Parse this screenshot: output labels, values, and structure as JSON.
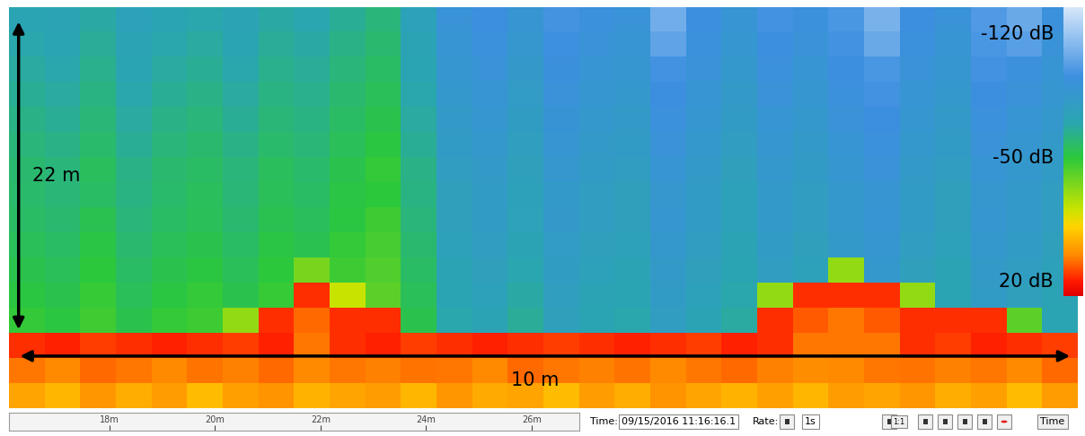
{
  "chart_data": {
    "type": "heatmap",
    "tick_labels": false,
    "annotations": [
      "22 m",
      "10 m"
    ],
    "color_range": [
      -134,
      29
    ],
    "color_ticks": [
      {
        "value": -120,
        "label": "-120 dB"
      },
      {
        "value": -50,
        "label": "-50 dB"
      },
      {
        "value": 20,
        "label": "20 dB"
      }
    ],
    "cells": [
      [
        -70,
        -72,
        -67,
        -74,
        -70,
        -68,
        -72,
        -67,
        -69,
        -64,
        -60,
        -74,
        -90,
        -94,
        -87,
        -97,
        -92,
        -90,
        -108,
        -94,
        -88,
        -96,
        -92,
        -98,
        -110,
        -94,
        -90,
        -100,
        -106,
        -92
      ],
      [
        -68,
        -70,
        -65,
        -72,
        -68,
        -66,
        -70,
        -65,
        -67,
        -62,
        -58,
        -72,
        -88,
        -92,
        -85,
        -95,
        -90,
        -88,
        -104,
        -92,
        -86,
        -94,
        -90,
        -96,
        -106,
        -92,
        -88,
        -98,
        -102,
        -90
      ],
      [
        -66,
        -68,
        -63,
        -70,
        -66,
        -64,
        -68,
        -63,
        -65,
        -60,
        -56,
        -70,
        -86,
        -90,
        -83,
        -93,
        -88,
        -86,
        -96,
        -90,
        -84,
        -92,
        -88,
        -94,
        -98,
        -90,
        -86,
        -96,
        -92,
        -88
      ],
      [
        -64,
        -66,
        -61,
        -68,
        -64,
        -62,
        -66,
        -61,
        -63,
        -58,
        -54,
        -68,
        -84,
        -88,
        -81,
        -91,
        -86,
        -84,
        -94,
        -88,
        -82,
        -90,
        -86,
        -92,
        -96,
        -88,
        -84,
        -94,
        -90,
        -86
      ],
      [
        -62,
        -64,
        -59,
        -66,
        -62,
        -60,
        -64,
        -59,
        -61,
        -56,
        -52,
        -66,
        -82,
        -86,
        -79,
        -89,
        -84,
        -82,
        -92,
        -86,
        -80,
        -88,
        -84,
        -90,
        -94,
        -86,
        -82,
        -92,
        -88,
        -84
      ],
      [
        -60,
        -62,
        -57,
        -64,
        -60,
        -58,
        -62,
        -57,
        -59,
        -54,
        -50,
        -64,
        -80,
        -84,
        -77,
        -87,
        -82,
        -80,
        -90,
        -84,
        -78,
        -86,
        -82,
        -88,
        -92,
        -84,
        -80,
        -90,
        -86,
        -82
      ],
      [
        -58,
        -60,
        -55,
        -62,
        -58,
        -56,
        -60,
        -55,
        -57,
        -52,
        -48,
        -62,
        -78,
        -82,
        -75,
        -85,
        -80,
        -78,
        -88,
        -82,
        -76,
        -84,
        -80,
        -86,
        -90,
        -82,
        -78,
        -88,
        -84,
        -80
      ],
      [
        -57,
        -59,
        -56,
        -61,
        -57,
        -55,
        -59,
        -54,
        -56,
        -51,
        -49,
        -61,
        -76,
        -80,
        -74,
        -82,
        -78,
        -76,
        -85,
        -80,
        -74,
        -82,
        -78,
        -84,
        -87,
        -80,
        -76,
        -85,
        -82,
        -78
      ],
      [
        -56,
        -58,
        -53,
        -60,
        -56,
        -54,
        -58,
        -53,
        -55,
        -50,
        -46,
        -60,
        -76,
        -80,
        -73,
        -83,
        -78,
        -76,
        -86,
        -80,
        -74,
        -82,
        -78,
        -84,
        -88,
        -80,
        -76,
        -86,
        -82,
        -78
      ],
      [
        -54,
        -56,
        -51,
        -58,
        -54,
        -52,
        -56,
        -51,
        -53,
        -48,
        -44,
        -58,
        -74,
        -78,
        -71,
        -81,
        -76,
        -74,
        -84,
        -78,
        -72,
        -80,
        -76,
        -82,
        -86,
        -78,
        -74,
        -84,
        -80,
        -76
      ],
      [
        -52,
        -54,
        -49,
        -56,
        -52,
        -50,
        -54,
        -49,
        -35,
        -46,
        -42,
        -56,
        -72,
        -76,
        -69,
        -79,
        -74,
        -72,
        -82,
        -76,
        -70,
        -78,
        -74,
        -30,
        -84,
        -76,
        -72,
        -82,
        -78,
        -74
      ],
      [
        -50,
        -52,
        -47,
        -54,
        -50,
        -48,
        -52,
        -47,
        18,
        -20,
        -40,
        -54,
        -70,
        -74,
        -67,
        -77,
        -72,
        -70,
        -80,
        -74,
        -68,
        -30,
        18,
        18,
        18,
        -30,
        -70,
        -80,
        -76,
        -72
      ],
      [
        -48,
        -50,
        -45,
        -52,
        -48,
        -46,
        -30,
        18,
        10,
        18,
        18,
        -52,
        -68,
        -72,
        -65,
        -75,
        -70,
        -68,
        -78,
        -72,
        -66,
        18,
        12,
        8,
        12,
        18,
        18,
        18,
        -40,
        -70
      ],
      [
        18,
        20,
        16,
        18,
        20,
        18,
        16,
        20,
        8,
        18,
        20,
        16,
        18,
        20,
        18,
        16,
        18,
        20,
        18,
        16,
        20,
        18,
        8,
        8,
        8,
        18,
        16,
        20,
        18,
        16
      ],
      [
        8,
        6,
        10,
        8,
        6,
        9,
        7,
        10,
        6,
        8,
        7,
        9,
        8,
        6,
        10,
        8,
        7,
        9,
        6,
        8,
        10,
        7,
        5,
        6,
        8,
        9,
        7,
        8,
        6,
        10
      ],
      [
        0,
        -4,
        3,
        -2,
        2,
        -5,
        1,
        4,
        -3,
        0,
        2,
        -4,
        3,
        -1,
        0,
        -5,
        2,
        -2,
        4,
        0,
        -3,
        1,
        -4,
        2,
        0,
        3,
        -2,
        1,
        -5,
        2
      ]
    ]
  },
  "timeline": {
    "xlim": [
      16.1,
      26.9
    ],
    "xticks": [
      {
        "value": 18,
        "label": "18m"
      },
      {
        "value": 20,
        "label": "20m"
      },
      {
        "value": 22,
        "label": "22m"
      },
      {
        "value": 24,
        "label": "24m"
      },
      {
        "value": 26,
        "label": "26m"
      }
    ]
  },
  "controls": {
    "time_label": "Time:",
    "time": "09/15/2016 11:16:16.1",
    "rate_label": "Rate:",
    "rate": "1s",
    "speed": "1:1",
    "mode": "Time"
  }
}
